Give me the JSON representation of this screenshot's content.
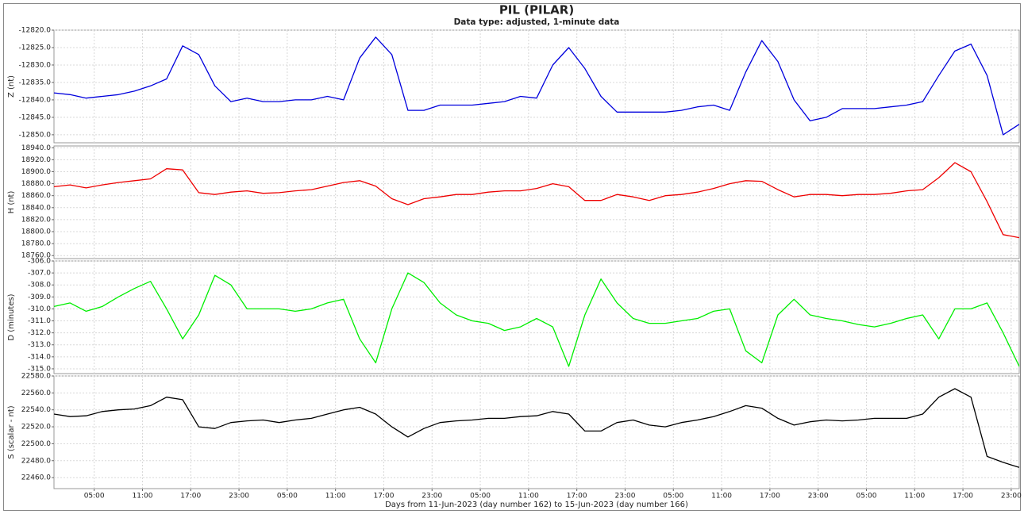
{
  "chart_data": [
    {
      "type": "line",
      "title": "PIL (PILAR)",
      "subtitle": "Data type: adjusted, 1-minute data",
      "ylabel": "Z (nt)",
      "color": "#0000dd",
      "grid": true,
      "x": [
        0,
        2,
        4,
        6,
        8,
        10,
        12,
        14,
        16,
        18,
        20,
        22,
        24,
        26,
        28,
        30,
        32,
        34,
        36,
        38,
        40,
        42,
        44,
        46,
        48,
        50,
        52,
        54,
        56,
        58,
        60,
        62,
        64,
        66,
        68,
        70,
        72,
        74,
        76,
        78,
        80,
        82,
        84,
        86,
        88,
        90,
        92,
        94,
        96,
        98,
        100,
        102,
        104,
        106,
        108,
        110,
        112,
        114,
        116,
        118,
        120
      ],
      "values": [
        -12838,
        -12838.5,
        -12839.5,
        -12839,
        -12838.5,
        -12837.5,
        -12836,
        -12834,
        -12824.5,
        -12827,
        -12836,
        -12840.5,
        -12839.5,
        -12840.5,
        -12840.5,
        -12840,
        -12840,
        -12839,
        -12840,
        -12828,
        -12822,
        -12827,
        -12843,
        -12843,
        -12841.5,
        -12841.5,
        -12841.5,
        -12841,
        -12840.5,
        -12839,
        -12839.5,
        -12830,
        -12825,
        -12831,
        -12839,
        -12843.5,
        -12843.5,
        -12843.5,
        -12843.5,
        -12843,
        -12842,
        -12841.5,
        -12843,
        -12832,
        -12823,
        -12829,
        -12840,
        -12846,
        -12845,
        -12842.5,
        -12842.5,
        -12842.5,
        -12842,
        -12841.5,
        -12840.5,
        -12833,
        -12826,
        -12824,
        -12833,
        -12850,
        -12847
      ],
      "xlim": [
        0,
        120
      ],
      "ylim": [
        -12852.3,
        -12820
      ],
      "yticks": [
        {
          "value": -12820,
          "label": "-12820.0"
        },
        {
          "value": -12825,
          "label": "-12825.0"
        },
        {
          "value": -12830,
          "label": "-12830.0"
        },
        {
          "value": -12835,
          "label": "-12835.0"
        },
        {
          "value": -12840,
          "label": "-12840.0"
        },
        {
          "value": -12845,
          "label": "-12845.0"
        },
        {
          "value": -12850,
          "label": "-12850.0"
        }
      ]
    },
    {
      "type": "line",
      "ylabel": "H (nt)",
      "color": "#ee0000",
      "grid": true,
      "x": [
        0,
        2,
        4,
        6,
        8,
        10,
        12,
        14,
        16,
        18,
        20,
        22,
        24,
        26,
        28,
        30,
        32,
        34,
        36,
        38,
        40,
        42,
        44,
        46,
        48,
        50,
        52,
        54,
        56,
        58,
        60,
        62,
        64,
        66,
        68,
        70,
        72,
        74,
        76,
        78,
        80,
        82,
        84,
        86,
        88,
        90,
        92,
        94,
        96,
        98,
        100,
        102,
        104,
        106,
        108,
        110,
        112,
        114,
        116,
        118,
        120
      ],
      "values": [
        18875,
        18878,
        18873,
        18878,
        18882,
        18885,
        18888,
        18905,
        18903,
        18865,
        18862,
        18866,
        18868,
        18864,
        18865,
        18868,
        18870,
        18876,
        18882,
        18885,
        18876,
        18855,
        18845,
        18855,
        18858,
        18862,
        18862,
        18866,
        18868,
        18868,
        18872,
        18880,
        18875,
        18852,
        18852,
        18862,
        18858,
        18852,
        18860,
        18862,
        18866,
        18872,
        18880,
        18885,
        18884,
        18870,
        18858,
        18862,
        18862,
        18860,
        18862,
        18862,
        18864,
        18868,
        18870,
        18890,
        18915,
        18900,
        18850,
        18795,
        18790
      ],
      "xlim": [
        0,
        120
      ],
      "ylim": [
        18755,
        18943
      ],
      "yticks": [
        {
          "value": 18760,
          "label": "18760.0"
        },
        {
          "value": 18780,
          "label": "18780.0"
        },
        {
          "value": 18800,
          "label": "18800.0"
        },
        {
          "value": 18820,
          "label": "18820.0"
        },
        {
          "value": 18840,
          "label": "18840.0"
        },
        {
          "value": 18860,
          "label": "18860.0"
        },
        {
          "value": 18880,
          "label": "18880.0"
        },
        {
          "value": 18900,
          "label": "18900.0"
        },
        {
          "value": 18920,
          "label": "18920.0"
        },
        {
          "value": 18940,
          "label": "18940.0"
        }
      ]
    },
    {
      "type": "line",
      "ylabel": "D (minutes)",
      "color": "#00ee00",
      "grid": true,
      "x": [
        0,
        2,
        4,
        6,
        8,
        10,
        12,
        14,
        16,
        18,
        20,
        22,
        24,
        26,
        28,
        30,
        32,
        34,
        36,
        38,
        40,
        42,
        44,
        46,
        48,
        50,
        52,
        54,
        56,
        58,
        60,
        62,
        64,
        66,
        68,
        70,
        72,
        74,
        76,
        78,
        80,
        82,
        84,
        86,
        88,
        90,
        92,
        94,
        96,
        98,
        100,
        102,
        104,
        106,
        108,
        110,
        112,
        114,
        116,
        118,
        120
      ],
      "values": [
        -309.8,
        -309.5,
        -310.2,
        -309.8,
        -309,
        -308.3,
        -307.7,
        -310,
        -312.5,
        -310.5,
        -307.2,
        -308,
        -310,
        -310,
        -310,
        -310.2,
        -310,
        -309.5,
        -309.2,
        -312.5,
        -314.5,
        -310,
        -307,
        -307.8,
        -309.5,
        -310.5,
        -311,
        -311.2,
        -311.8,
        -311.5,
        -310.8,
        -311.5,
        -314.8,
        -310.5,
        -307.5,
        -309.5,
        -310.8,
        -311.2,
        -311.2,
        -311,
        -310.8,
        -310.2,
        -310,
        -313.5,
        -314.5,
        -310.5,
        -309.2,
        -310.5,
        -310.8,
        -311,
        -311.3,
        -311.5,
        -311.2,
        -310.8,
        -310.5,
        -312.5,
        -310,
        -310,
        -309.5,
        -312,
        -314.8
      ],
      "xlim": [
        0,
        120
      ],
      "ylim": [
        -315.4,
        -306
      ],
      "yticks": [
        {
          "value": -306,
          "label": "-306.0"
        },
        {
          "value": -307,
          "label": "-307.0"
        },
        {
          "value": -308,
          "label": "-308.0"
        },
        {
          "value": -309,
          "label": "-309.0"
        },
        {
          "value": -310,
          "label": "-310.0"
        },
        {
          "value": -311,
          "label": "-311.0"
        },
        {
          "value": -312,
          "label": "-312.0"
        },
        {
          "value": -313,
          "label": "-313.0"
        },
        {
          "value": -314,
          "label": "-314.0"
        },
        {
          "value": -315,
          "label": "-315.0"
        }
      ]
    },
    {
      "type": "line",
      "ylabel": "S (scalar - nt)",
      "xlabel": "Days from 11-Jun-2023 (day number 162) to 15-Jun-2023 (day number 166)",
      "color": "#000000",
      "grid": true,
      "x": [
        0,
        2,
        4,
        6,
        8,
        10,
        12,
        14,
        16,
        18,
        20,
        22,
        24,
        26,
        28,
        30,
        32,
        34,
        36,
        38,
        40,
        42,
        44,
        46,
        48,
        50,
        52,
        54,
        56,
        58,
        60,
        62,
        64,
        66,
        68,
        70,
        72,
        74,
        76,
        78,
        80,
        82,
        84,
        86,
        88,
        90,
        92,
        94,
        96,
        98,
        100,
        102,
        104,
        106,
        108,
        110,
        112,
        114,
        116,
        118,
        120
      ],
      "values": [
        22535,
        22532,
        22533,
        22538,
        22540,
        22541,
        22545,
        22555,
        22552,
        22520,
        22518,
        22525,
        22527,
        22528,
        22525,
        22528,
        22530,
        22535,
        22540,
        22543,
        22535,
        22520,
        22508,
        22518,
        22525,
        22527,
        22528,
        22530,
        22530,
        22532,
        22533,
        22538,
        22535,
        22515,
        22515,
        22525,
        22528,
        22522,
        22520,
        22525,
        22528,
        22532,
        22538,
        22545,
        22542,
        22530,
        22522,
        22526,
        22528,
        22527,
        22528,
        22530,
        22530,
        22530,
        22535,
        22555,
        22565,
        22555,
        22485,
        22478,
        22472
      ],
      "xlim": [
        0,
        120
      ],
      "ylim": [
        22447,
        22580
      ],
      "yticks": [
        {
          "value": 22460,
          "label": "22460.0"
        },
        {
          "value": 22480,
          "label": "22480.0"
        },
        {
          "value": 22500,
          "label": "22500.0"
        },
        {
          "value": 22520,
          "label": "22520.0"
        },
        {
          "value": 22540,
          "label": "22540.0"
        },
        {
          "value": 22560,
          "label": "22560.0"
        },
        {
          "value": 22580,
          "label": "22580.0"
        }
      ],
      "xticks": [
        {
          "value": 5,
          "label": "05:00"
        },
        {
          "value": 11,
          "label": "11:00"
        },
        {
          "value": 17,
          "label": "17:00"
        },
        {
          "value": 23,
          "label": "23:00"
        },
        {
          "value": 29,
          "label": "05:00"
        },
        {
          "value": 35,
          "label": "11:00"
        },
        {
          "value": 41,
          "label": "17:00"
        },
        {
          "value": 47,
          "label": "23:00"
        },
        {
          "value": 53,
          "label": "05:00"
        },
        {
          "value": 59,
          "label": "11:00"
        },
        {
          "value": 65,
          "label": "17:00"
        },
        {
          "value": 71,
          "label": "23:00"
        },
        {
          "value": 77,
          "label": "05:00"
        },
        {
          "value": 83,
          "label": "11:00"
        },
        {
          "value": 89,
          "label": "17:00"
        },
        {
          "value": 95,
          "label": "23:00"
        },
        {
          "value": 101,
          "label": "05:00"
        },
        {
          "value": 107,
          "label": "11:00"
        },
        {
          "value": 113,
          "label": "17:00"
        },
        {
          "value": 119,
          "label": "23:00"
        }
      ]
    }
  ]
}
